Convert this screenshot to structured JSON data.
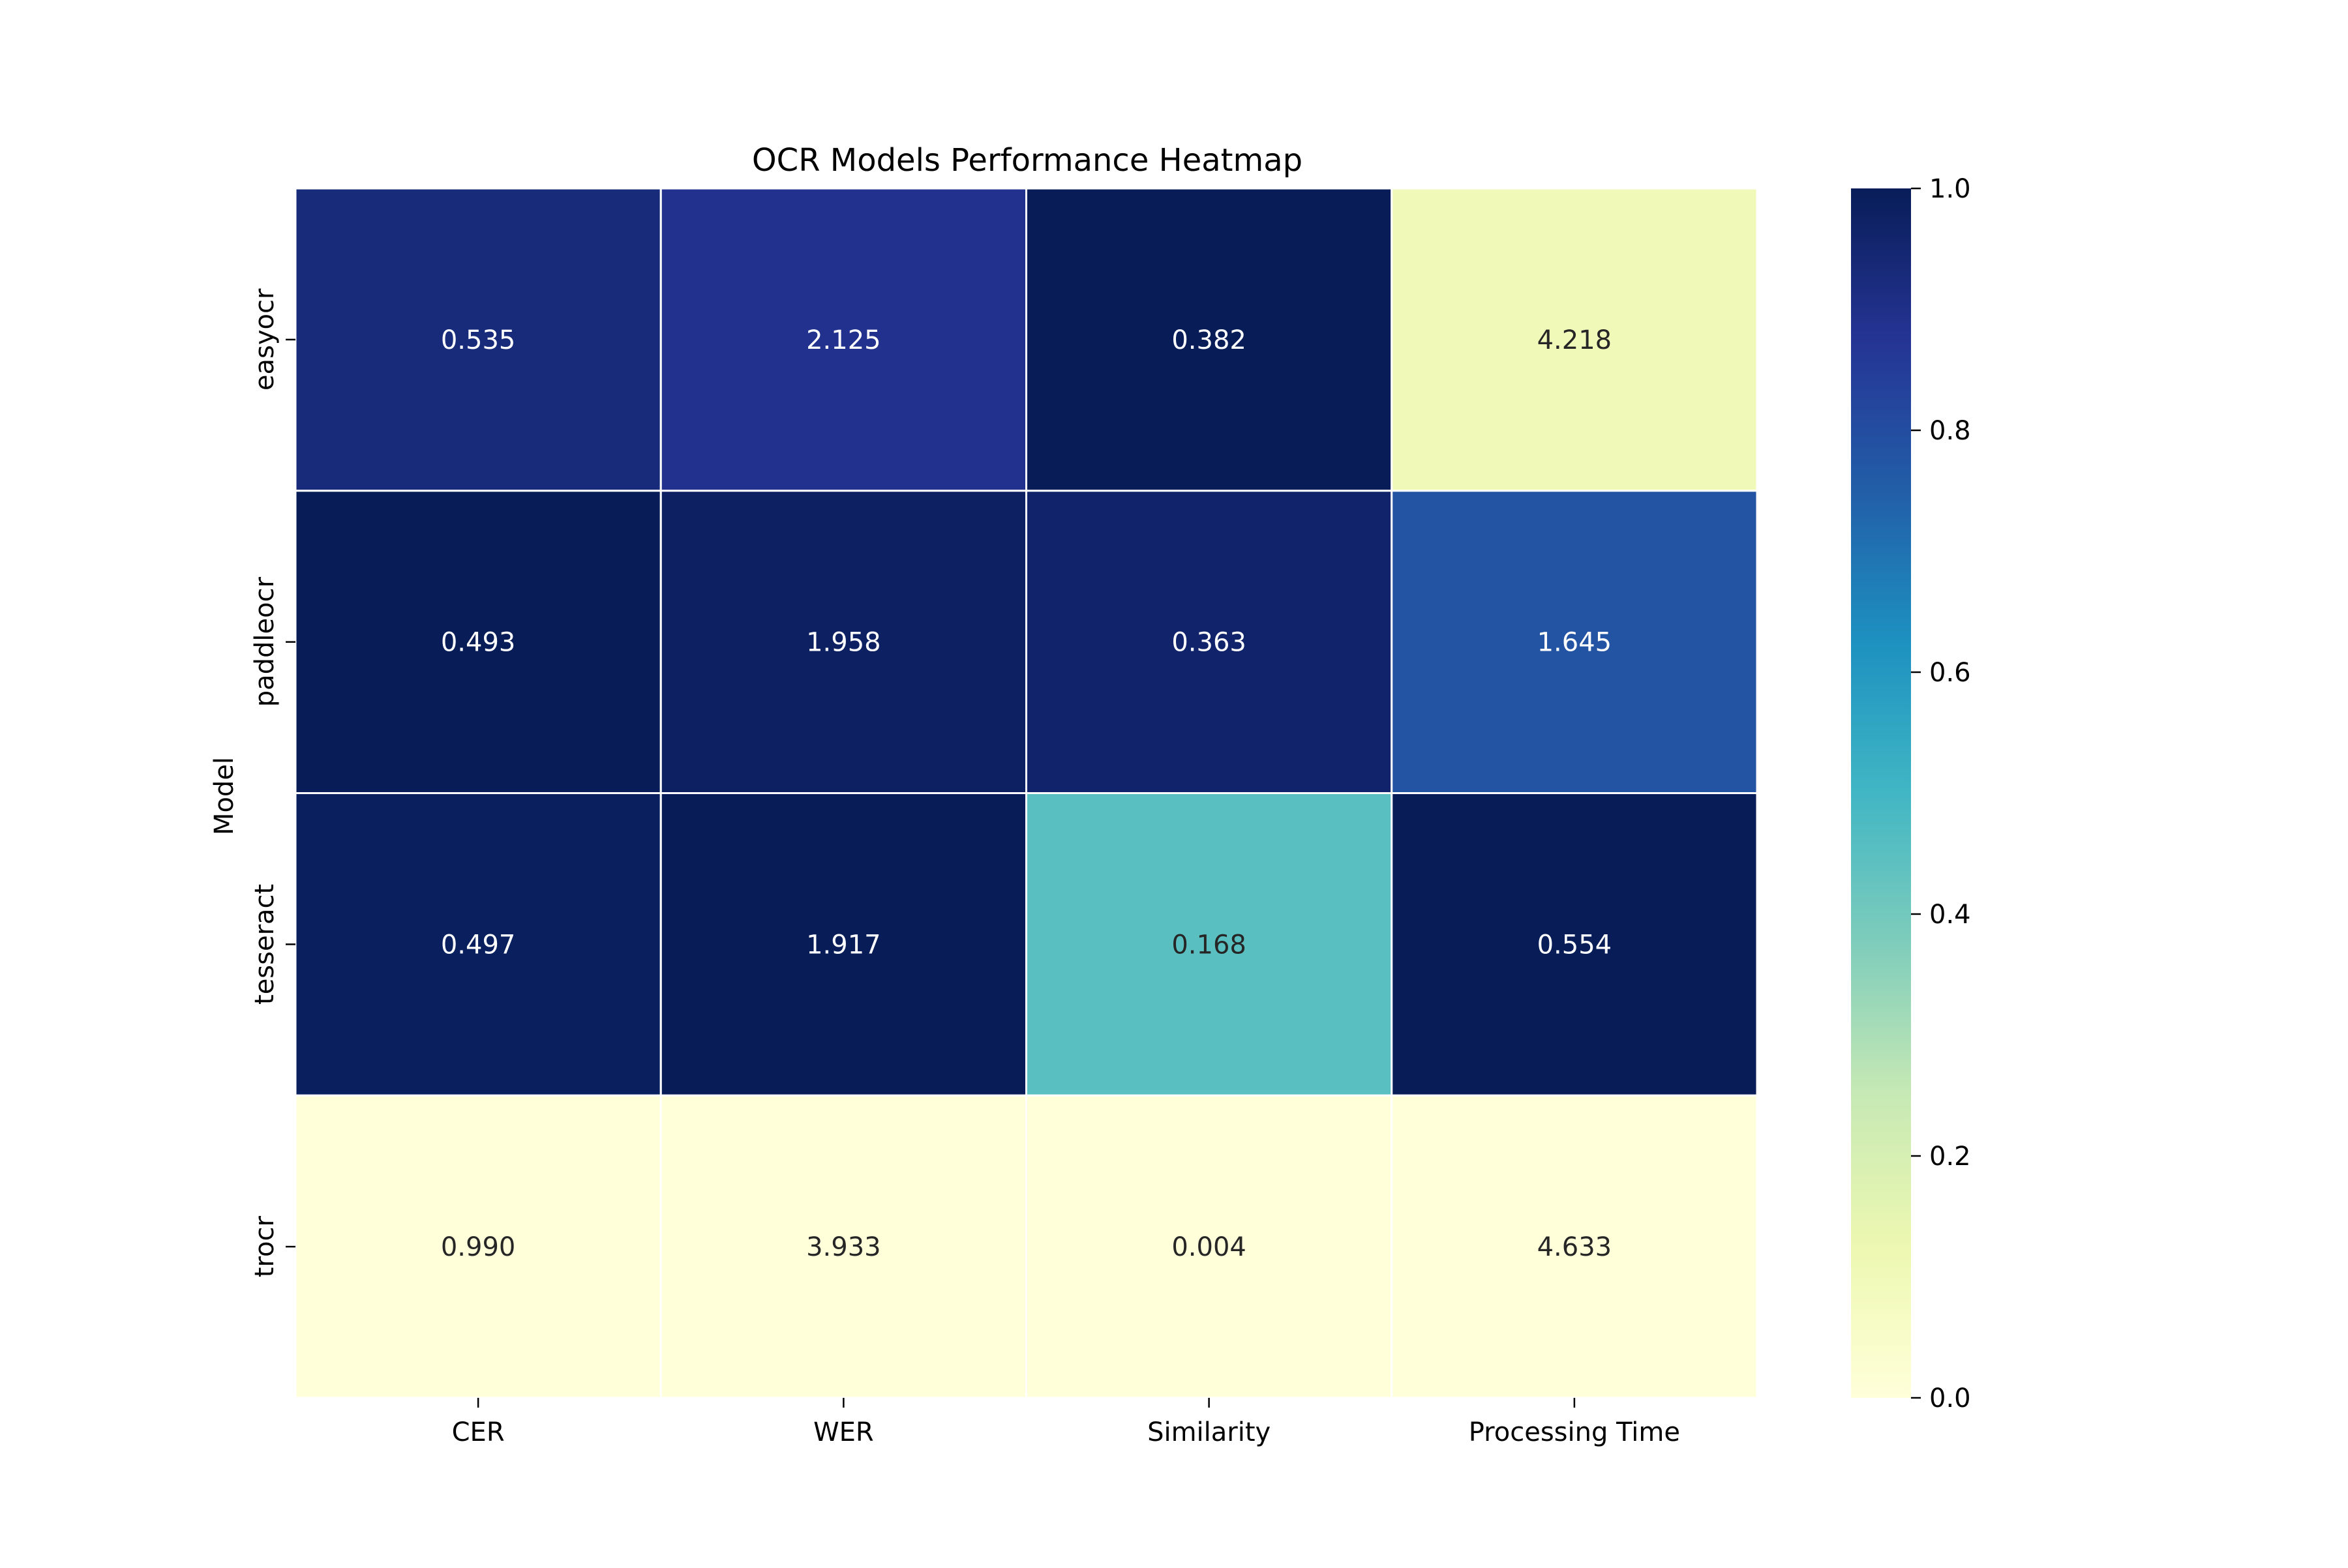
{
  "chart_data": {
    "type": "heatmap",
    "title": "OCR Models Performance Heatmap",
    "ylabel": "Model",
    "xlabel": "",
    "columns": [
      "CER",
      "WER",
      "Similarity",
      "Processing Time"
    ],
    "rows": [
      "easyocr",
      "paddleocr",
      "tesseract",
      "trocr"
    ],
    "values": [
      [
        0.535,
        2.125,
        0.382,
        4.218
      ],
      [
        0.493,
        1.958,
        0.363,
        1.645
      ],
      [
        0.497,
        1.917,
        0.168,
        0.554
      ],
      [
        0.99,
        3.933,
        0.004,
        4.633
      ]
    ],
    "cell_labels": [
      [
        "0.535",
        "2.125",
        "0.382",
        "4.218"
      ],
      [
        "0.493",
        "1.958",
        "0.363",
        "1.645"
      ],
      [
        "0.497",
        "1.917",
        "0.168",
        "0.554"
      ],
      [
        "0.990",
        "3.933",
        "0.004",
        "4.633"
      ]
    ],
    "normalized_color_values": [
      [
        0.93,
        0.89,
        1.0,
        0.1
      ],
      [
        1.0,
        0.98,
        0.96,
        0.78
      ],
      [
        0.99,
        1.0,
        0.45,
        1.0
      ],
      [
        0.0,
        0.0,
        0.0,
        0.0
      ]
    ],
    "colormap": "YlGnBu",
    "colorbar": {
      "min": 0.0,
      "max": 1.0,
      "ticks": [
        "0.0",
        "0.2",
        "0.4",
        "0.6",
        "0.8",
        "1.0"
      ],
      "tick_values": [
        0.0,
        0.2,
        0.4,
        0.6,
        0.8,
        1.0
      ]
    },
    "grid": false,
    "legend": "colorbar-right"
  }
}
